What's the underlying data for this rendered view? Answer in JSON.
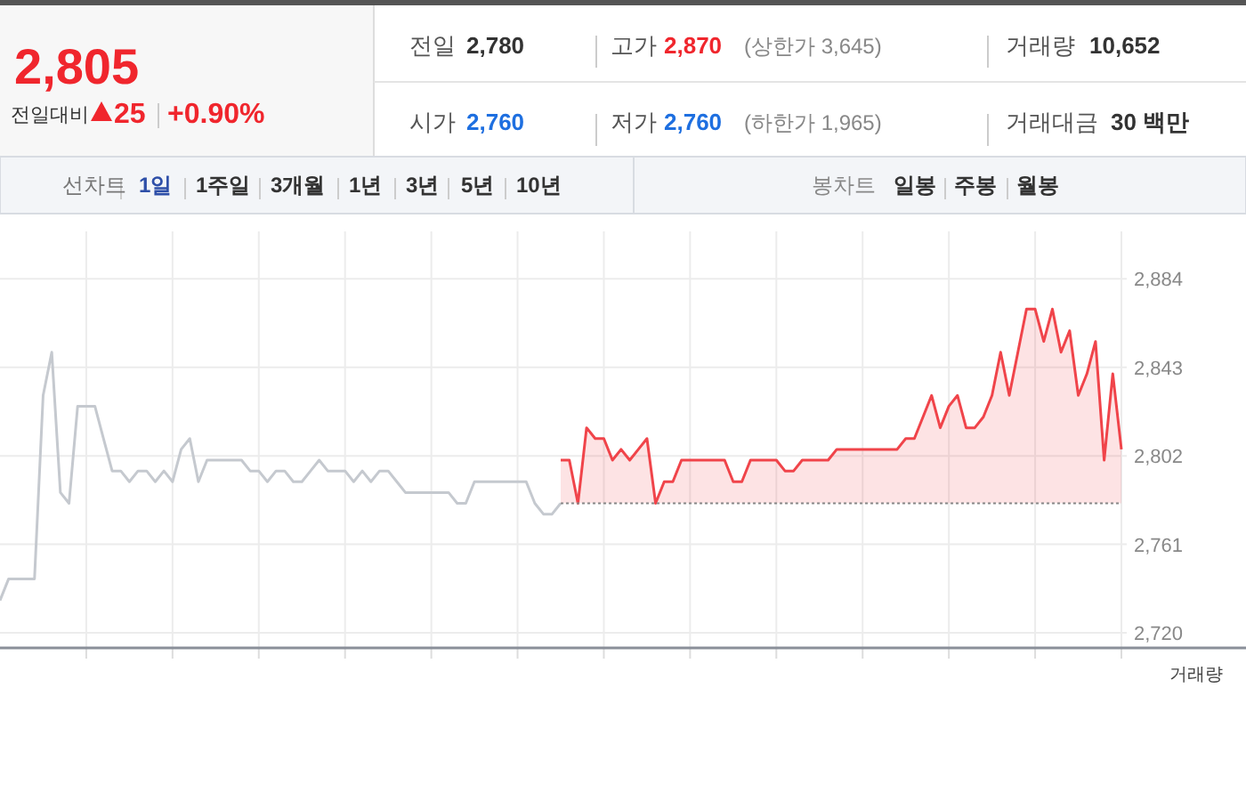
{
  "chart_data": [
    {
      "type": "other",
      "annotations": [
        "2,805",
        "전일대비",
        "25",
        "+0.90%",
        "전일",
        "2,780",
        "고가",
        "2,870",
        "(상한가 3,645)",
        "거래량",
        "10,652",
        "시가",
        "2,760",
        "저가",
        "2,760",
        "(하한가 1,965)",
        "거래대금",
        "30 백만",
        "선차트",
        "1일",
        "1주일",
        "3개월",
        "1년",
        "3년",
        "5년",
        "10년",
        "봉차트",
        "일봉",
        "주봉",
        "월봉"
      ]
    },
    {
      "type": "line",
      "grid": true,
      "tick_labels": "y",
      "ylim": [
        2713,
        2906
      ],
      "categories": [
        null,
        null,
        null,
        null,
        null,
        null,
        null,
        null,
        null,
        null,
        null,
        null,
        null,
        null,
        null,
        null,
        null,
        null,
        null,
        null,
        null,
        null,
        null,
        null,
        null,
        null,
        null,
        null,
        null,
        null,
        null,
        null,
        null,
        null,
        null,
        null,
        null,
        null,
        null,
        null,
        null,
        null,
        null,
        null,
        null,
        null,
        null,
        null,
        null,
        null,
        null,
        null,
        null,
        null,
        null,
        null,
        null,
        null,
        null,
        null,
        null,
        null,
        null,
        null,
        null,
        null,
        null,
        null,
        null,
        null,
        null,
        null,
        null,
        null,
        null,
        null,
        null,
        null,
        null,
        null,
        null,
        null,
        null,
        null,
        null,
        null,
        null,
        null,
        null,
        null,
        null,
        null,
        null,
        null,
        null,
        null,
        null,
        null,
        null,
        null,
        null,
        null,
        null,
        null,
        null,
        null,
        null,
        null,
        null,
        null,
        null,
        null,
        null,
        null,
        null,
        null,
        null,
        null,
        null,
        null,
        null,
        null,
        null,
        null,
        null,
        null,
        null,
        null,
        null,
        null,
        null
      ],
      "yticks": [
        {
          "value": 2720,
          "label": "2,720"
        },
        {
          "value": 2761,
          "label": "2,761"
        },
        {
          "value": 2802,
          "label": "2,802"
        },
        {
          "value": 2843,
          "label": "2,843"
        },
        {
          "value": 2884,
          "label": "2,884"
        }
      ],
      "ref_lines": [
        {
          "axis": "y",
          "value": 2780,
          "line_style": "dotted",
          "color": "#888888"
        }
      ],
      "annotations": [
        "거래량"
      ],
      "series": [
        {
          "type": "line",
          "color": "#c5c9cf",
          "values": [
            2735,
            2745,
            2745,
            2745,
            2745,
            2830,
            2850,
            2785,
            2780,
            2825,
            2825,
            2825,
            2810,
            2795,
            2795,
            2790,
            2795,
            2795,
            2790,
            2795,
            2790,
            2805,
            2810,
            2790,
            2800,
            2800,
            2800,
            2800,
            2800,
            2795,
            2795,
            2790,
            2795,
            2795,
            2790,
            2790,
            2795,
            2800,
            2795,
            2795,
            2795,
            2790,
            2795,
            2790,
            2795,
            2795,
            2790,
            2785,
            2785,
            2785,
            2785,
            2785,
            2785,
            2780,
            2780,
            2790,
            2790,
            2790,
            2790,
            2790,
            2790,
            2790,
            2780,
            2775,
            2775,
            2780,
            null,
            null,
            null,
            null,
            null,
            null,
            null,
            null,
            null,
            null,
            null,
            null,
            null,
            null,
            null,
            null,
            null,
            null,
            null,
            null,
            null,
            null,
            null,
            null,
            null,
            null,
            null,
            null,
            null,
            null,
            null,
            null,
            null,
            null,
            null,
            null,
            null,
            null,
            null,
            null,
            null,
            null,
            null,
            null,
            null,
            null,
            null,
            null,
            null,
            null,
            null,
            null,
            null,
            null,
            null,
            null,
            null,
            null,
            null,
            null,
            null,
            null,
            null,
            null,
            null
          ]
        },
        {
          "type": "area",
          "color": "#f0444a",
          "values": [
            null,
            null,
            null,
            null,
            null,
            null,
            null,
            null,
            null,
            null,
            null,
            null,
            null,
            null,
            null,
            null,
            null,
            null,
            null,
            null,
            null,
            null,
            null,
            null,
            null,
            null,
            null,
            null,
            null,
            null,
            null,
            null,
            null,
            null,
            null,
            null,
            null,
            null,
            null,
            null,
            null,
            null,
            null,
            null,
            null,
            null,
            null,
            null,
            null,
            null,
            null,
            null,
            null,
            null,
            null,
            null,
            null,
            null,
            null,
            null,
            null,
            null,
            null,
            null,
            null,
            2800,
            2800,
            2780,
            2815,
            2810,
            2810,
            2800,
            2805,
            2800,
            2805,
            2810,
            2780,
            2790,
            2790,
            2800,
            2800,
            2800,
            2800,
            2800,
            2800,
            2790,
            2790,
            2800,
            2800,
            2800,
            2800,
            2795,
            2795,
            2800,
            2800,
            2800,
            2800,
            2805,
            2805,
            2805,
            2805,
            2805,
            2805,
            2805,
            2805,
            2810,
            2810,
            2820,
            2830,
            2815,
            2825,
            2830,
            2815,
            2815,
            2820,
            2830,
            2850,
            2830,
            2850,
            2870,
            2870,
            2855,
            2870,
            2850,
            2860,
            2830,
            2840,
            2855,
            2800,
            2840,
            2805
          ]
        }
      ]
    }
  ]
}
